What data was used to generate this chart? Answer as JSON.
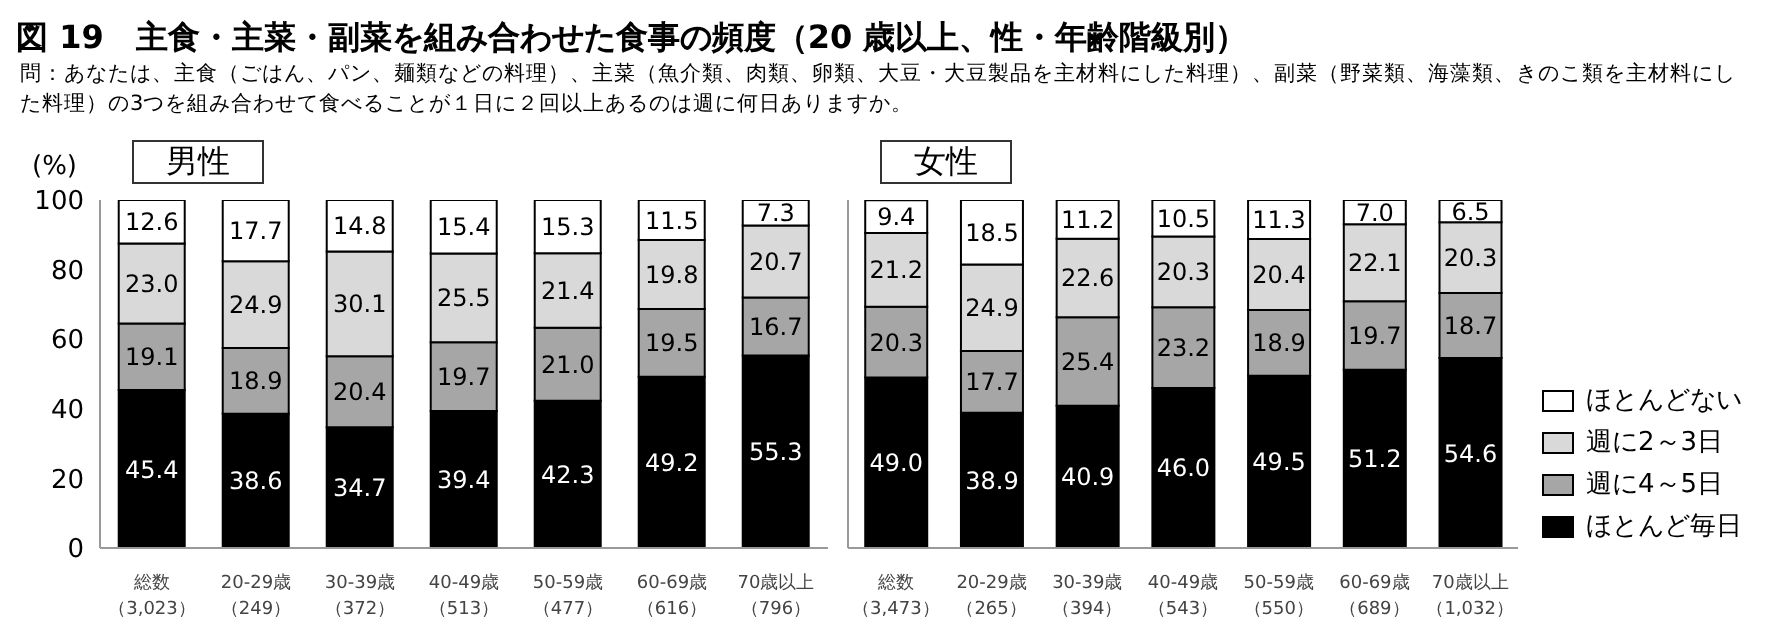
{
  "chart_data": [
    {
      "type": "bar",
      "title": "男性",
      "annotations": [
        "図 19　主食・主菜・副菜を組み合わせた食事の頻度（20 歳以上、性・年齢階級別）",
        "問：あなたは、主食（ごはん、パン、麺類などの料理）、主菜（魚介類、肉類、卵類、大豆・大豆製品を主材料にした料理）、副菜（野菜類、海藻類、きのこ類を主材料にした料理）の3つを組み合わせて食べることが１日に２回以上あるのは週に何日ありますか。"
      ],
      "ylabel": "(%)",
      "categories": [
        "総数（3,023）",
        "20-29歳（249）",
        "30-39歳（372）",
        "40-49歳（513）",
        "50-59歳（477）",
        "60-69歳（616）",
        "70歳以上（796）"
      ],
      "stacked": true,
      "ylim": [
        0,
        100
      ],
      "yticks": [
        0,
        20,
        40,
        60,
        80,
        100
      ],
      "grid": false,
      "series": [
        {
          "color": "#000000",
          "values": [
            45.4,
            38.6,
            34.7,
            39.4,
            42.3,
            49.2,
            55.3
          ],
          "value_labels": [
            "45.4",
            "38.6",
            "34.7",
            "39.4",
            "42.3",
            "49.2",
            "55.3"
          ]
        },
        {
          "color": "#a6a6a6",
          "values": [
            19.1,
            18.9,
            20.4,
            19.7,
            21.0,
            19.5,
            16.7
          ],
          "value_labels": [
            "19.1",
            "18.9",
            "20.4",
            "19.7",
            "21.0",
            "19.5",
            "16.7"
          ]
        },
        {
          "color": "#d9d9d9",
          "values": [
            23.0,
            24.9,
            30.1,
            25.5,
            21.4,
            19.8,
            20.7
          ],
          "value_labels": [
            "23.0",
            "24.9",
            "30.1",
            "25.5",
            "21.4",
            "19.8",
            "20.7"
          ]
        },
        {
          "color": "#ffffff",
          "values": [
            12.6,
            17.7,
            14.8,
            15.4,
            15.3,
            11.5,
            7.3
          ],
          "value_labels": [
            "12.6",
            "17.7",
            "14.8",
            "15.4",
            "15.3",
            "11.5",
            "7.3"
          ]
        }
      ]
    },
    {
      "type": "bar",
      "title": "女性",
      "categories": [
        "総数（3,473）",
        "20-29歳（265）",
        "30-39歳（394）",
        "40-49歳（543）",
        "50-59歳（550）",
        "60-69歳（689）",
        "70歳以上（1,032）"
      ],
      "stacked": true,
      "ylim": [
        0,
        100
      ],
      "yticks": [
        0,
        20,
        40,
        60,
        80,
        100
      ],
      "tick_labels": "x",
      "grid": false,
      "legend": "right",
      "series": [
        {
          "name": "ほとんど毎日",
          "color": "#000000",
          "values": [
            49.0,
            38.9,
            40.9,
            46.0,
            49.5,
            51.2,
            54.6
          ],
          "value_labels": [
            "49.0",
            "38.9",
            "40.9",
            "46.0",
            "49.5",
            "51.2",
            "54.6"
          ]
        },
        {
          "name": "週に4～5日",
          "color": "#a6a6a6",
          "values": [
            20.3,
            17.7,
            25.4,
            23.2,
            18.9,
            19.7,
            18.7
          ],
          "value_labels": [
            "20.3",
            "17.7",
            "25.4",
            "23.2",
            "18.9",
            "19.7",
            "18.7"
          ]
        },
        {
          "name": "週に2～3日",
          "color": "#d9d9d9",
          "values": [
            21.2,
            24.9,
            22.6,
            20.3,
            20.4,
            22.1,
            20.3
          ],
          "value_labels": [
            "21.2",
            "24.9",
            "22.6",
            "20.3",
            "20.4",
            "22.1",
            "20.3"
          ]
        },
        {
          "name": "ほとんどない",
          "color": "#ffffff",
          "values": [
            9.4,
            18.5,
            11.2,
            10.5,
            11.3,
            7.0,
            6.5
          ],
          "value_labels": [
            "9.4",
            "18.5",
            "11.2",
            "10.5",
            "11.3",
            "7.0",
            "6.5"
          ]
        }
      ]
    }
  ]
}
